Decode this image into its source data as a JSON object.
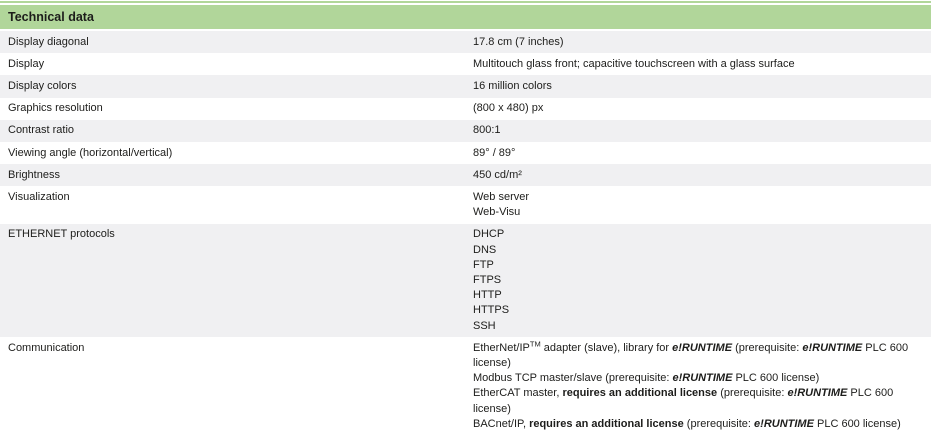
{
  "colors": {
    "header_bg": "#b1d69a",
    "alt_row_bg": "#f0f0f2",
    "text": "#1d1d1b",
    "top_rule": "#b1d69a"
  },
  "table": {
    "header": "Technical data",
    "rows": [
      {
        "label": "Display diagonal",
        "values": [
          [
            {
              "text": "17.8 cm (7 inches)"
            }
          ]
        ]
      },
      {
        "label": "Display",
        "values": [
          [
            {
              "text": "Multitouch glass front; capacitive touchscreen with a glass surface"
            }
          ]
        ]
      },
      {
        "label": "Display colors",
        "values": [
          [
            {
              "text": "16 million colors"
            }
          ]
        ]
      },
      {
        "label": "Graphics resolution",
        "values": [
          [
            {
              "text": "(800 x 480) px"
            }
          ]
        ]
      },
      {
        "label": "Contrast ratio",
        "values": [
          [
            {
              "text": "800:1"
            }
          ]
        ]
      },
      {
        "label": "Viewing angle (horizontal/vertical)",
        "values": [
          [
            {
              "text": "89° / 89°"
            }
          ]
        ]
      },
      {
        "label": "Brightness",
        "values": [
          [
            {
              "text": "450 cd/m²"
            }
          ]
        ]
      },
      {
        "label": "Visualization",
        "values": [
          [
            {
              "text": "Web server"
            }
          ],
          [
            {
              "text": "Web-Visu"
            }
          ]
        ]
      },
      {
        "label": "ETHERNET protocols",
        "values": [
          [
            {
              "text": "DHCP"
            }
          ],
          [
            {
              "text": "DNS"
            }
          ],
          [
            {
              "text": "FTP"
            }
          ],
          [
            {
              "text": "FTPS"
            }
          ],
          [
            {
              "text": "HTTP"
            }
          ],
          [
            {
              "text": "HTTPS"
            }
          ],
          [
            {
              "text": "SSH"
            }
          ]
        ]
      },
      {
        "label": "Communication",
        "values": [
          [
            {
              "text": "EtherNet/IP"
            },
            {
              "text": "TM",
              "sup": true
            },
            {
              "text": " adapter (slave), library for "
            },
            {
              "text": "e!RUNTIME",
              "bold": true,
              "italic": true
            },
            {
              "text": " (prerequisite: "
            },
            {
              "text": "e!RUNTIME",
              "bold": true,
              "italic": true
            },
            {
              "text": " PLC 600 license)"
            }
          ],
          [
            {
              "text": "Modbus TCP master/slave (prerequisite: "
            },
            {
              "text": "e!RUNTIME",
              "bold": true,
              "italic": true
            },
            {
              "text": " PLC 600 license)"
            }
          ],
          [
            {
              "text": "EtherCAT master, "
            },
            {
              "text": "requires an additional license",
              "bold": true
            },
            {
              "text": " (prerequisite: "
            },
            {
              "text": "e!RUNTIME",
              "bold": true,
              "italic": true
            },
            {
              "text": " PLC 600 license)"
            }
          ],
          [
            {
              "text": "BACnet/IP, "
            },
            {
              "text": "requires an additional license",
              "bold": true
            },
            {
              "text": " (prerequisite: "
            },
            {
              "text": "e!RUNTIME",
              "bold": true,
              "italic": true
            },
            {
              "text": " PLC 600 license)"
            }
          ]
        ]
      }
    ]
  }
}
